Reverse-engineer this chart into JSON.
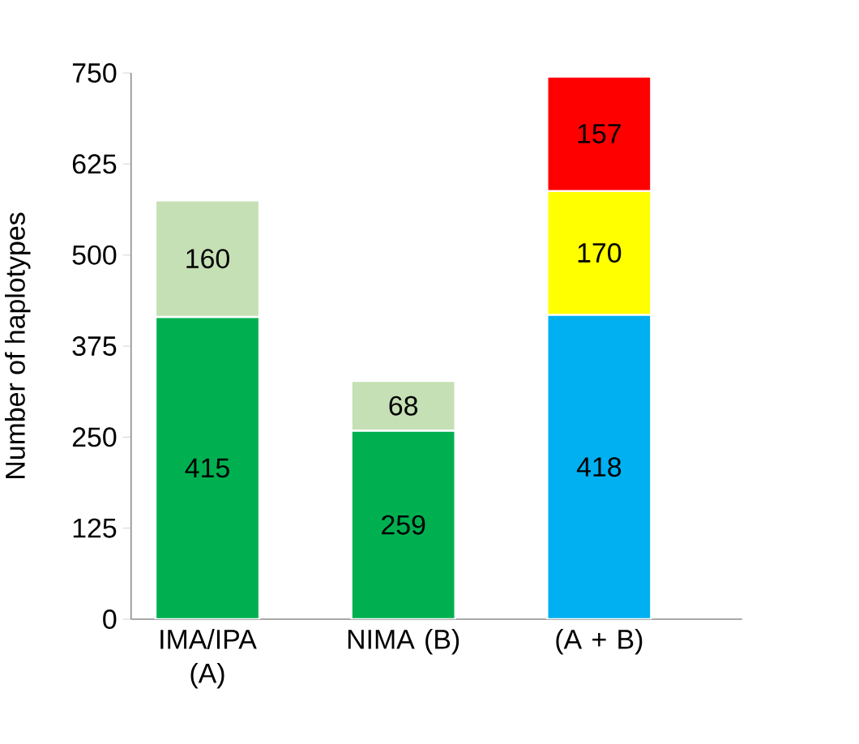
{
  "chart_data": {
    "type": "bar",
    "stacked": true,
    "data_labels": true,
    "ylabel": "Number of haplotypes",
    "categories": [
      "IMA/IPA (A)",
      "NIMA (B)",
      "(A + B)"
    ],
    "series": [
      {
        "values": [
          415,
          259,
          418
        ],
        "colors": [
          "#00b050",
          "#00b050",
          "#00b0f0"
        ]
      },
      {
        "values": [
          160,
          68,
          170
        ],
        "colors": [
          "#c5e0b4",
          "#c5e0b4",
          "#ffff00"
        ]
      },
      {
        "values": [
          null,
          null,
          157
        ],
        "colors": [
          null,
          null,
          "#ff0000"
        ]
      }
    ],
    "ylim": [
      0,
      750
    ],
    "yticks": [
      0,
      125,
      250,
      375,
      500,
      625,
      750
    ]
  }
}
